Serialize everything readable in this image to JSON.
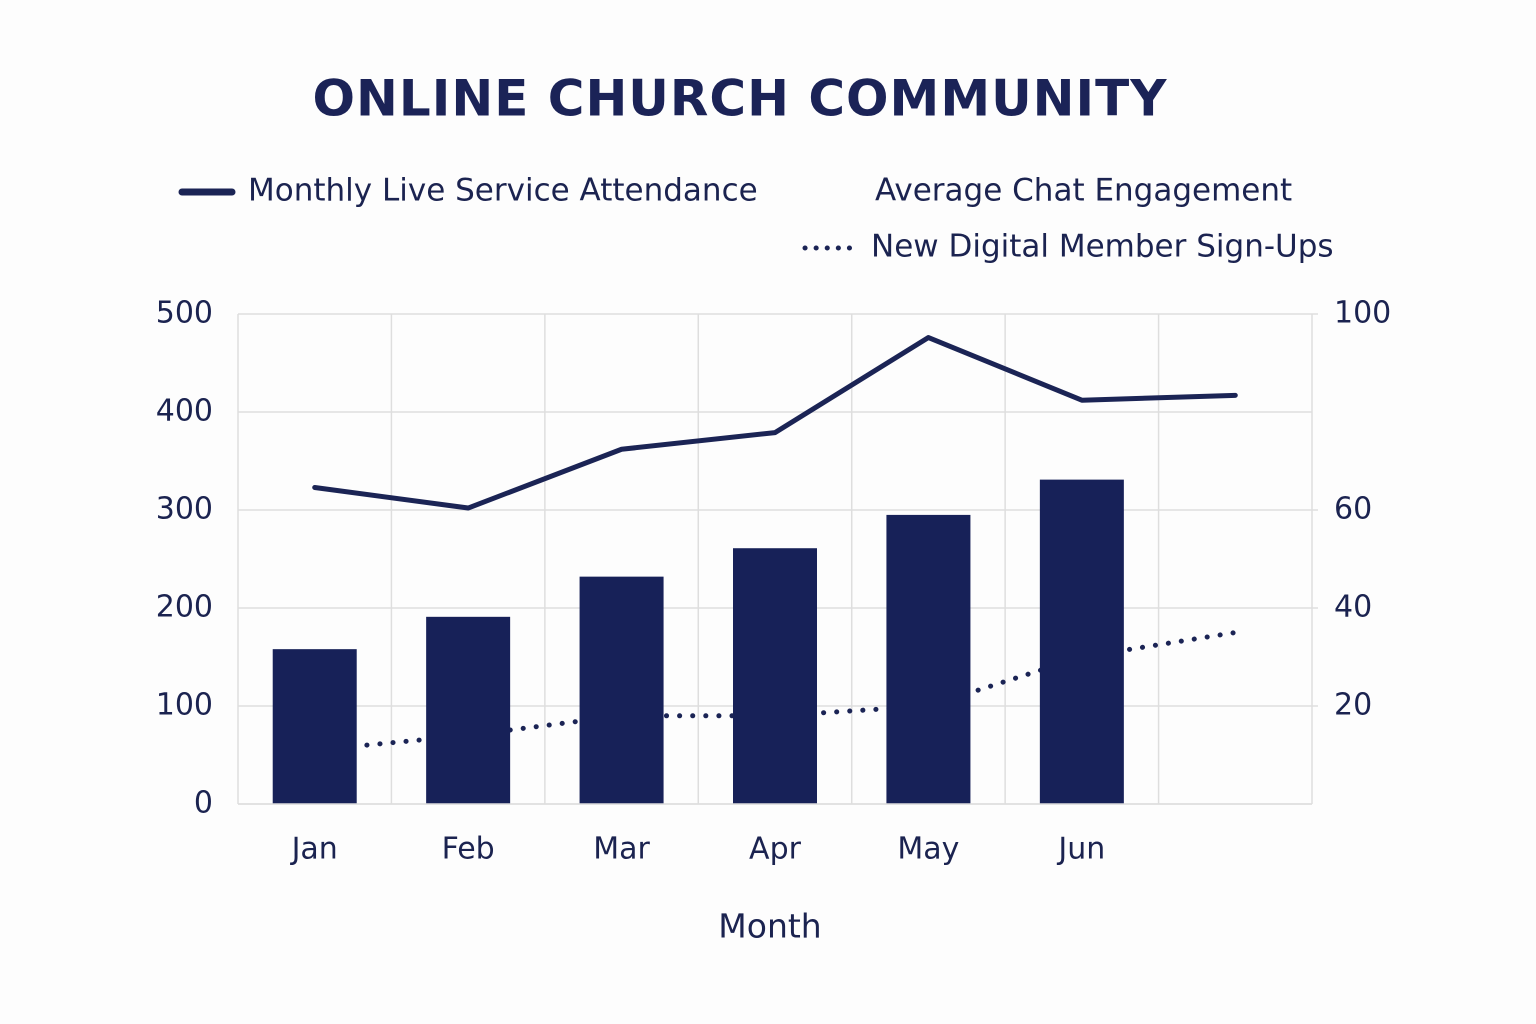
{
  "chart_data": {
    "type": "bar",
    "title": "ONLINE CHURCH COMMUNITY",
    "x_label": "Month",
    "categories": [
      "Jan",
      "Feb",
      "Mar",
      "Apr",
      "May",
      "Jun",
      null
    ],
    "series": [
      {
        "name": "Monthly Live Service Attendance",
        "type": "line",
        "style": "solid",
        "color": "#1b2455",
        "axis": "y",
        "values": [
          323,
          302,
          362,
          379,
          476,
          412,
          417
        ]
      },
      {
        "name": "Average Chat Engagement",
        "type": "bar",
        "color": "#172158",
        "axis": "y",
        "values": [
          158,
          191,
          232,
          261,
          295,
          331,
          null
        ]
      },
      {
        "name": "New Digital Member Sign-Ups",
        "type": "line",
        "style": "dotted",
        "color": "#1b2455",
        "axis": "y2",
        "values": [
          11,
          14,
          18,
          18,
          20,
          30,
          35
        ]
      }
    ],
    "ylim": [
      0,
      500
    ],
    "yticks": [
      0,
      100,
      200,
      300,
      400,
      500
    ],
    "y2lim": [
      0,
      100
    ],
    "y2ticks": [
      20,
      40,
      60,
      100
    ],
    "grid": true
  }
}
